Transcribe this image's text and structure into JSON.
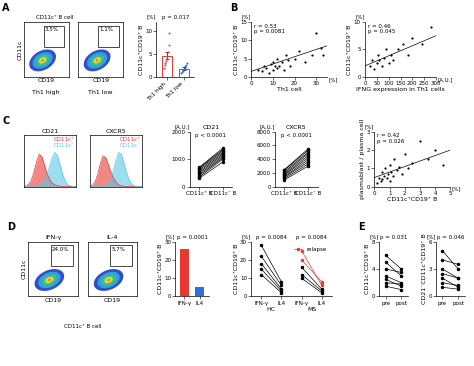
{
  "chart_data": [
    {
      "panel": "A",
      "type": "flow",
      "x_label": "CD19",
      "y_label": "CD11c",
      "gate_label": "CD11c⁺ B cell",
      "plots": [
        {
          "name": "Th1 high",
          "gate": "3.5%"
        },
        {
          "name": "Th1 low",
          "gate": "1.1%"
        }
      ],
      "tick_labels": false
    },
    {
      "type": "bar",
      "categories": [
        "Th1 high",
        "Th1 low"
      ],
      "values": [
        4.6,
        1.8
      ],
      "errors": [
        0.8,
        0.3
      ],
      "points": [
        [
          2.0,
          2.5,
          3.0,
          3.5,
          4.0,
          4.5,
          5.5,
          7.0,
          9.5
        ],
        [
          0.8,
          1.0,
          1.2,
          1.5,
          1.7,
          2.0,
          2.3,
          2.6,
          3.0
        ]
      ],
      "colors": [
        "#e8382f",
        "#2f6fd6"
      ],
      "y_label": "CD11c⁺CD19⁺ B",
      "y_unit": "[%]",
      "annotation": "p = 0.017",
      "ylim": [
        0,
        12
      ],
      "yticks": [
        0,
        5,
        10
      ]
    },
    {
      "panel": "B",
      "type": "scatter",
      "x": [
        3,
        5,
        6,
        7,
        8,
        9,
        10,
        10,
        11,
        12,
        12,
        13,
        14,
        15,
        16,
        17,
        18,
        20,
        22,
        25,
        28,
        30,
        32,
        33
      ],
      "values": [
        2,
        1.5,
        3,
        2.5,
        1,
        3.5,
        2,
        4,
        3,
        2.5,
        5,
        3,
        4,
        2,
        6,
        4.5,
        3,
        5,
        7,
        4,
        6,
        12,
        8,
        6
      ],
      "trend": {
        "x": [
          0,
          35
        ],
        "values": [
          1.5,
          8.5
        ]
      },
      "color": "#000000",
      "x_label": "Th1 cell",
      "x_unit": "[%]",
      "y_label": "CD11c⁺CD19⁺ B",
      "y_unit": "[%]",
      "annotation": [
        "r = 0.53",
        "p = 0.0081"
      ],
      "xlim": [
        0,
        35
      ],
      "xticks": [
        0,
        10,
        20,
        30
      ],
      "ylim": [
        0,
        15
      ],
      "yticks": [
        0,
        5,
        10,
        15
      ]
    },
    {
      "type": "scatter",
      "x": [
        20,
        30,
        40,
        50,
        55,
        60,
        70,
        80,
        90,
        100,
        110,
        120,
        140,
        160,
        180,
        200,
        240,
        280
      ],
      "values": [
        2,
        3,
        1.5,
        2.5,
        4,
        3,
        2,
        3.5,
        5,
        2.5,
        4,
        3,
        5,
        6,
        4,
        7,
        6,
        9
      ],
      "trend": {
        "x": [
          0,
          300
        ],
        "values": [
          2,
          7.5
        ]
      },
      "color": "#000000",
      "x_label": "IFNG expression in Th1 cells",
      "x_unit": "[A.U.]",
      "y_label": "CD11c⁺CD19⁺ B",
      "y_unit": "[%]",
      "annotation": [
        "r = 0.46",
        "p = 0.045"
      ],
      "xlim": [
        0,
        300
      ],
      "xticks": [
        0,
        50,
        100,
        150,
        200,
        250,
        300
      ],
      "ylim": [
        0,
        10
      ],
      "yticks": [
        0,
        5,
        10
      ]
    },
    {
      "panel": "C",
      "type": "area",
      "title": "CD21",
      "tick_labels": false,
      "x": [
        0,
        1,
        2,
        3,
        4,
        5,
        6,
        7,
        8,
        9,
        10,
        11,
        12,
        13,
        14,
        15,
        16,
        17,
        18,
        19,
        20
      ],
      "series": [
        {
          "name": "CD11c⁺",
          "color": "#e8382f",
          "values": [
            0,
            1,
            3,
            8,
            18,
            30,
            38,
            35,
            25,
            15,
            8,
            4,
            2,
            1,
            0.5,
            0,
            0,
            0,
            0,
            0,
            0
          ]
        },
        {
          "name": "CD11c⁻",
          "color": "#5bc8e6",
          "values": [
            0,
            0,
            0,
            0,
            0.5,
            1,
            2,
            4,
            8,
            15,
            25,
            35,
            40,
            36,
            25,
            14,
            6,
            2,
            1,
            0,
            0
          ]
        }
      ],
      "xlim": [
        0,
        20
      ],
      "ylim": [
        0,
        60
      ]
    },
    {
      "type": "area",
      "title": "CXCR5",
      "tick_labels": false,
      "x": [
        0,
        1,
        2,
        3,
        4,
        5,
        6,
        7,
        8,
        9,
        10,
        11,
        12,
        13,
        14,
        15,
        16,
        17,
        18,
        19,
        20
      ],
      "series": [
        {
          "name": "CD11c⁺",
          "color": "#e8382f",
          "values": [
            0,
            2,
            6,
            15,
            28,
            36,
            34,
            26,
            17,
            10,
            5,
            2,
            1,
            0.5,
            0,
            0,
            0,
            0,
            0,
            0,
            0
          ]
        },
        {
          "name": "CD11c⁻",
          "color": "#5bc8e6",
          "values": [
            0,
            0,
            0,
            0,
            0,
            1,
            2,
            5,
            10,
            20,
            32,
            40,
            38,
            28,
            16,
            8,
            3,
            1,
            0,
            0,
            0
          ]
        }
      ],
      "xlim": [
        0,
        20
      ],
      "ylim": [
        0,
        60
      ]
    },
    {
      "type": "paired",
      "title": "CD21",
      "categories": [
        "CD11c⁺ B",
        "CD11c⁻ B"
      ],
      "y_unit": "[A.U.]",
      "annotation": "p < 0.0001",
      "pairs": [
        [
          300,
          900
        ],
        [
          350,
          1000
        ],
        [
          400,
          1050
        ],
        [
          450,
          1100
        ],
        [
          500,
          1150
        ],
        [
          550,
          1200
        ],
        [
          600,
          1250
        ],
        [
          650,
          1300
        ],
        [
          680,
          1350
        ],
        [
          700,
          1400
        ]
      ],
      "color": "#000000",
      "ylim": [
        0,
        2000
      ],
      "yticks": [
        0,
        1000,
        2000
      ]
    },
    {
      "type": "paired",
      "title": "CXCR5",
      "categories": [
        "CD11c⁺ B",
        "CD11c⁻ B"
      ],
      "y_unit": "[A.U.]",
      "annotation": "p < 0.0001",
      "pairs": [
        [
          1000,
          3000
        ],
        [
          1200,
          3300
        ],
        [
          1400,
          3600
        ],
        [
          1500,
          3900
        ],
        [
          1700,
          4200
        ],
        [
          1800,
          4500
        ],
        [
          2000,
          4800
        ],
        [
          2200,
          5000
        ],
        [
          2400,
          5300
        ],
        [
          2500,
          5500
        ]
      ],
      "color": "#000000",
      "ylim": [
        0,
        8000
      ],
      "yticks": [
        0,
        2000,
        4000,
        6000,
        8000
      ]
    },
    {
      "type": "scatter",
      "x": [
        0.2,
        0.3,
        0.4,
        0.5,
        0.5,
        0.6,
        0.7,
        0.8,
        0.9,
        1.0,
        1.0,
        1.1,
        1.2,
        1.3,
        1.5,
        1.6,
        1.8,
        2.0,
        2.2,
        2.5,
        3.0,
        3.5,
        4.0,
        4.5
      ],
      "values": [
        0.2,
        0.5,
        0.3,
        0.8,
        0.4,
        0.6,
        1.0,
        0.5,
        0.7,
        0.3,
        1.2,
        0.8,
        0.6,
        1.5,
        0.9,
        1.1,
        0.7,
        1.8,
        1.0,
        1.3,
        2.5,
        1.5,
        2.0,
        1.2
      ],
      "trend": {
        "x": [
          0,
          5
        ],
        "values": [
          0.5,
          2.0
        ]
      },
      "color": "#000000",
      "x_label": "CD11c⁺CD19⁺ B",
      "x_unit": "[%]",
      "y_label": "plasmablast / plasma cell",
      "y_unit": "[%]",
      "annotation": [
        "r = 0.42",
        "p = 0.026"
      ],
      "xlim": [
        0,
        5
      ],
      "xticks": [
        0,
        1,
        2,
        3,
        4,
        5
      ],
      "ylim": [
        0,
        3
      ],
      "yticks": [
        0,
        1,
        2,
        3
      ]
    },
    {
      "panel": "D",
      "type": "flow",
      "x_label": "CD19",
      "y_label": "CD11c",
      "gate_label": "CD11c⁺ B cell",
      "plots": [
        {
          "name": "IFN-γ",
          "gate": "24.0%"
        },
        {
          "name": "IL-4",
          "gate": "5.7%"
        }
      ],
      "tick_labels": false
    },
    {
      "type": "bar",
      "categories": [
        "IFN-γ",
        "IL4"
      ],
      "values": [
        26,
        5
      ],
      "colors": [
        "#e8382f",
        "#2f6fd6"
      ],
      "y_label": "CD11c⁺CD19⁺ B",
      "y_unit": "[%]",
      "annotation": "p = 0.0001",
      "ylim": [
        0,
        30
      ],
      "yticks": [
        0,
        10,
        20,
        30
      ]
    },
    {
      "type": "paired",
      "legend": "upper right",
      "legend_entries": [
        {
          "name": "relapse",
          "color": "#e8382f"
        }
      ],
      "groups": [
        {
          "name": "HC",
          "categories": [
            "IFN-γ",
            "IL4"
          ],
          "annotation": "p = 0.0084",
          "pairs": [
            [
              28,
              8
            ],
            [
              22,
              6
            ],
            [
              18,
              4
            ],
            [
              15,
              3
            ],
            [
              12,
              2
            ]
          ],
          "pair_colors": [
            "#000000",
            "#000000",
            "#000000",
            "#000000",
            "#000000"
          ]
        },
        {
          "name": "MS",
          "categories": [
            "IFN-γ",
            "IL4"
          ],
          "annotation": "p = 0.0084",
          "pairs": [
            [
              25,
              6
            ],
            [
              20,
              8
            ],
            [
              16,
              4
            ],
            [
              12,
              3
            ],
            [
              10,
              2
            ]
          ],
          "pair_colors": [
            "#e8382f",
            "#e8382f",
            "#000000",
            "#000000",
            "#000000"
          ]
        }
      ],
      "y_label": "CD11c⁺CD19⁺ B",
      "y_unit": "[%]",
      "ylim": [
        0,
        30
      ],
      "yticks": [
        0,
        10,
        20,
        30
      ]
    },
    {
      "panel": "E",
      "type": "paired",
      "categories": [
        "pre",
        "post"
      ],
      "y_label": "CD11c⁺CD19⁺ B",
      "y_unit": "[%]",
      "annotation": "p = 0.031",
      "pairs": [
        [
          6,
          4
        ],
        [
          5,
          3
        ],
        [
          4,
          3.5
        ],
        [
          3,
          2
        ],
        [
          2.5,
          1.5
        ],
        [
          2,
          1.8
        ],
        [
          1.5,
          1
        ]
      ],
      "color": "#000000",
      "ylim": [
        0,
        8
      ],
      "yticks": [
        0,
        4,
        8
      ]
    },
    {
      "type": "paired",
      "categories": [
        "pre",
        "post"
      ],
      "y_label": "CD21⁻CD11c⁺CD19⁺ B",
      "y_unit": "[%]",
      "annotation": "p = 0.046",
      "pairs": [
        [
          5,
          3
        ],
        [
          4,
          3.5
        ],
        [
          3,
          2
        ],
        [
          2.5,
          2
        ],
        [
          2,
          1
        ],
        [
          1.5,
          1.2
        ],
        [
          1,
          0.8
        ]
      ],
      "color": "#000000",
      "ylim": [
        0,
        6
      ],
      "yticks": [
        0,
        3,
        6
      ]
    }
  ]
}
